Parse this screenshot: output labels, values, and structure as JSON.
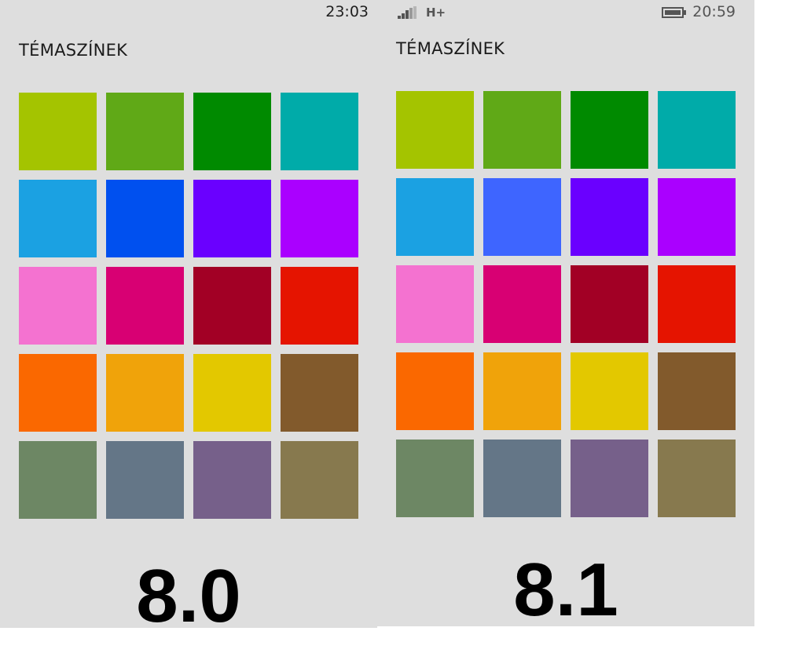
{
  "left_screen": {
    "status_time": "23:03",
    "title": "TÉMASZÍNEK",
    "version_label": "8.0",
    "swatches": [
      "#a4c400",
      "#60a917",
      "#008a00",
      "#00aba9",
      "#1ba1e2",
      "#0050ef",
      "#6a00ff",
      "#aa00ff",
      "#f472d0",
      "#d80073",
      "#a20025",
      "#e51400",
      "#fa6800",
      "#f0a30a",
      "#e3c800",
      "#825a2c",
      "#6d8764",
      "#647687",
      "#76608a",
      "#87794e"
    ]
  },
  "right_screen": {
    "status_time": "20:59",
    "network_type": "H+",
    "signal_icon": "signal-strength-icon",
    "battery_icon": "battery-icon",
    "title": "TÉMASZÍNEK",
    "version_label": "8.1",
    "swatches": [
      "#a4c400",
      "#60a917",
      "#008a00",
      "#00aba9",
      "#1ba1e2",
      "#3e65ff",
      "#6a00ff",
      "#aa00ff",
      "#f472d0",
      "#d80073",
      "#a20025",
      "#e51400",
      "#fa6800",
      "#f0a30a",
      "#e3c800",
      "#825a2c",
      "#6d8764",
      "#647687",
      "#76608a",
      "#87794e"
    ]
  }
}
